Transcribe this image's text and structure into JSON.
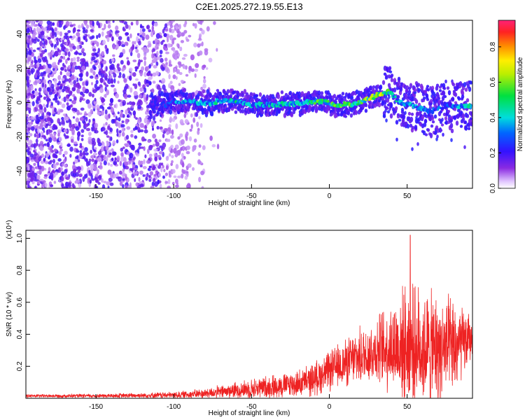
{
  "title": "C2E1.2025.272.19.55.E13",
  "colors": {
    "snr_line": "#ee2222",
    "axis": "#000000"
  },
  "chart_data": [
    {
      "type": "heatmap",
      "xlabel": "Height of straight line (km)",
      "ylabel": "Frequency (Hz)",
      "xlim": [
        -195,
        92
      ],
      "ylim": [
        -50,
        48
      ],
      "x_ticks": [
        -150,
        -100,
        -50,
        0,
        50
      ],
      "y_ticks": [
        -40,
        -20,
        0,
        20,
        40
      ],
      "colorbar": {
        "label": "Normalized spectral amplitude",
        "range": [
          0,
          0.95
        ],
        "ticks": [
          0.0,
          0.2,
          0.4,
          0.6,
          0.8
        ],
        "colormap": "rainbow (violet-blue-cyan-green-yellow-red-magenta)"
      },
      "ridge_frequency": {
        "x": [
          -110,
          -95,
          -80,
          -65,
          -50,
          -35,
          -20,
          -5,
          5,
          15,
          25,
          33,
          38,
          45,
          55,
          65,
          75,
          85,
          92
        ],
        "freq": [
          -1.5,
          0.5,
          -0.5,
          1.5,
          -1.5,
          -1,
          -0.5,
          1,
          -1.5,
          -1,
          2,
          5,
          7,
          0,
          -2,
          -5,
          -2,
          -2,
          -2
        ],
        "amplitude": [
          0.2,
          0.4,
          0.4,
          0.5,
          0.4,
          0.45,
          0.5,
          0.6,
          0.6,
          0.6,
          0.65,
          0.7,
          0.55,
          0.4,
          0.4,
          0.3,
          0.35,
          0.4,
          0.5
        ]
      }
    },
    {
      "type": "line",
      "xlabel": "Height of straight line (km)",
      "ylabel": "SNR (10 * v/v)",
      "multiplier_label": "(x10⁴)",
      "xlim": [
        -195,
        92
      ],
      "ylim": [
        0,
        1.05
      ],
      "x_ticks": [
        -150,
        -100,
        -50,
        0,
        50
      ],
      "y_ticks": [
        0.2,
        0.4,
        0.6,
        0.8,
        1.0
      ],
      "envelope": {
        "x": [
          -195,
          -150,
          -100,
          -80,
          -60,
          -40,
          -20,
          -10,
          0,
          10,
          20,
          30,
          40,
          50,
          60,
          70,
          80,
          92
        ],
        "mean": [
          0.015,
          0.015,
          0.02,
          0.03,
          0.05,
          0.07,
          0.09,
          0.12,
          0.17,
          0.22,
          0.26,
          0.3,
          0.32,
          0.33,
          0.32,
          0.3,
          0.31,
          0.38
        ],
        "amplitude": [
          0.01,
          0.012,
          0.02,
          0.03,
          0.05,
          0.07,
          0.08,
          0.1,
          0.12,
          0.14,
          0.17,
          0.2,
          0.28,
          0.36,
          0.35,
          0.33,
          0.3,
          0.12
        ]
      },
      "peak": {
        "x": 52,
        "y": 1.02
      }
    }
  ]
}
